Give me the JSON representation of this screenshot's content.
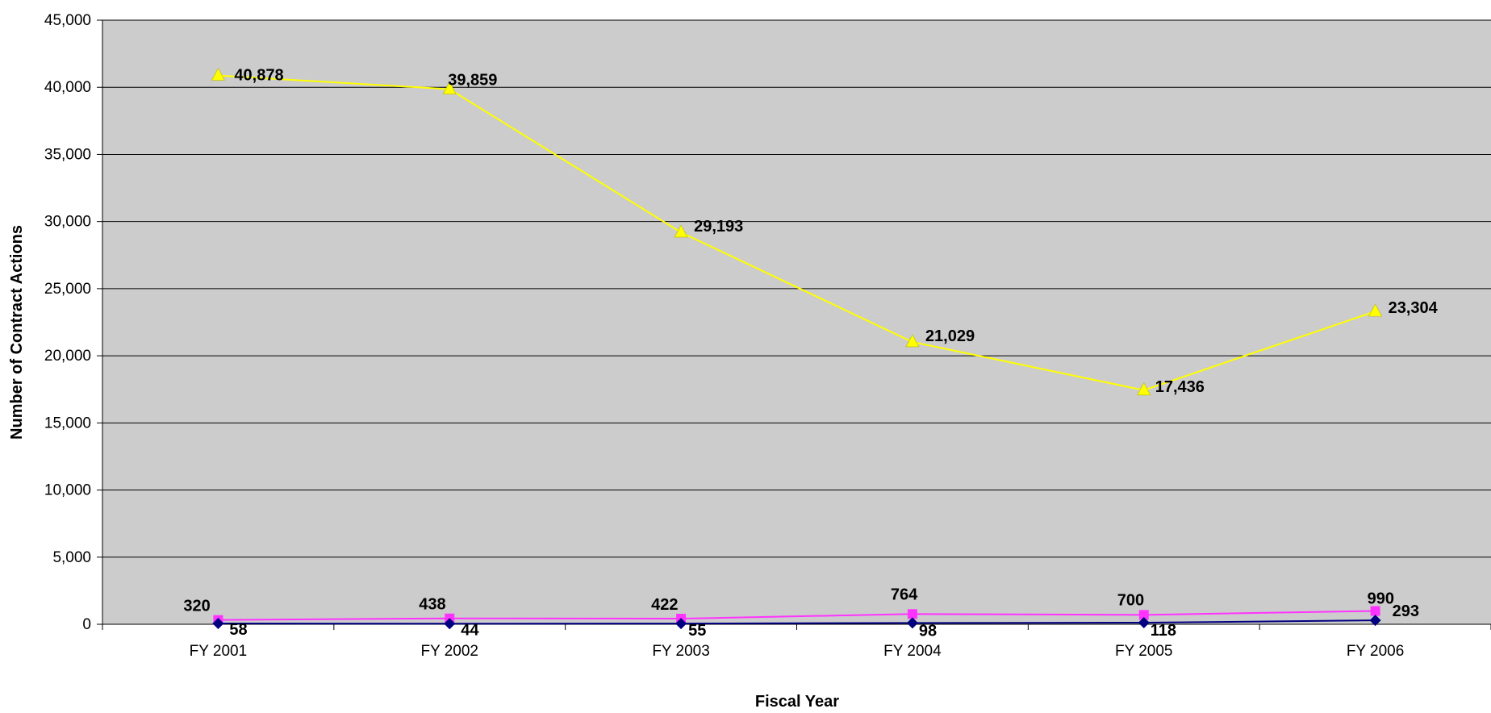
{
  "chart_data": {
    "type": "line",
    "title": "",
    "xlabel": "Fiscal Year",
    "ylabel": "Number of Contract Actions",
    "categories": [
      "FY 2001",
      "FY 2002",
      "FY 2003",
      "FY 2004",
      "FY 2005",
      "FY 2006"
    ],
    "ylim": [
      0,
      45000
    ],
    "yticks": [
      0,
      5000,
      10000,
      15000,
      20000,
      25000,
      30000,
      35000,
      40000,
      45000
    ],
    "ytick_labels": [
      "0",
      "5,000",
      "10,000",
      "15,000",
      "20,000",
      "25,000",
      "30,000",
      "35,000",
      "40,000",
      "45,000"
    ],
    "grid": true,
    "legend": "none",
    "plot_background": "#CCCCCC",
    "series": [
      {
        "values": [
          40878,
          39859,
          29193,
          21029,
          17436,
          23304
        ],
        "labels": [
          "40,878",
          "39,859",
          "29,193",
          "21,029",
          "17,436",
          "23,304"
        ],
        "color": "#FFFF00",
        "marker": "triangle"
      },
      {
        "values": [
          320,
          438,
          422,
          764,
          700,
          990
        ],
        "labels": [
          "320",
          "438",
          "422",
          "764",
          "700",
          "990"
        ],
        "color": "#FF33FF",
        "marker": "square"
      },
      {
        "values": [
          58,
          44,
          55,
          98,
          118,
          293
        ],
        "labels": [
          "58",
          "44",
          "55",
          "98",
          "118",
          "293"
        ],
        "color": "#000080",
        "marker": "diamond"
      }
    ]
  }
}
